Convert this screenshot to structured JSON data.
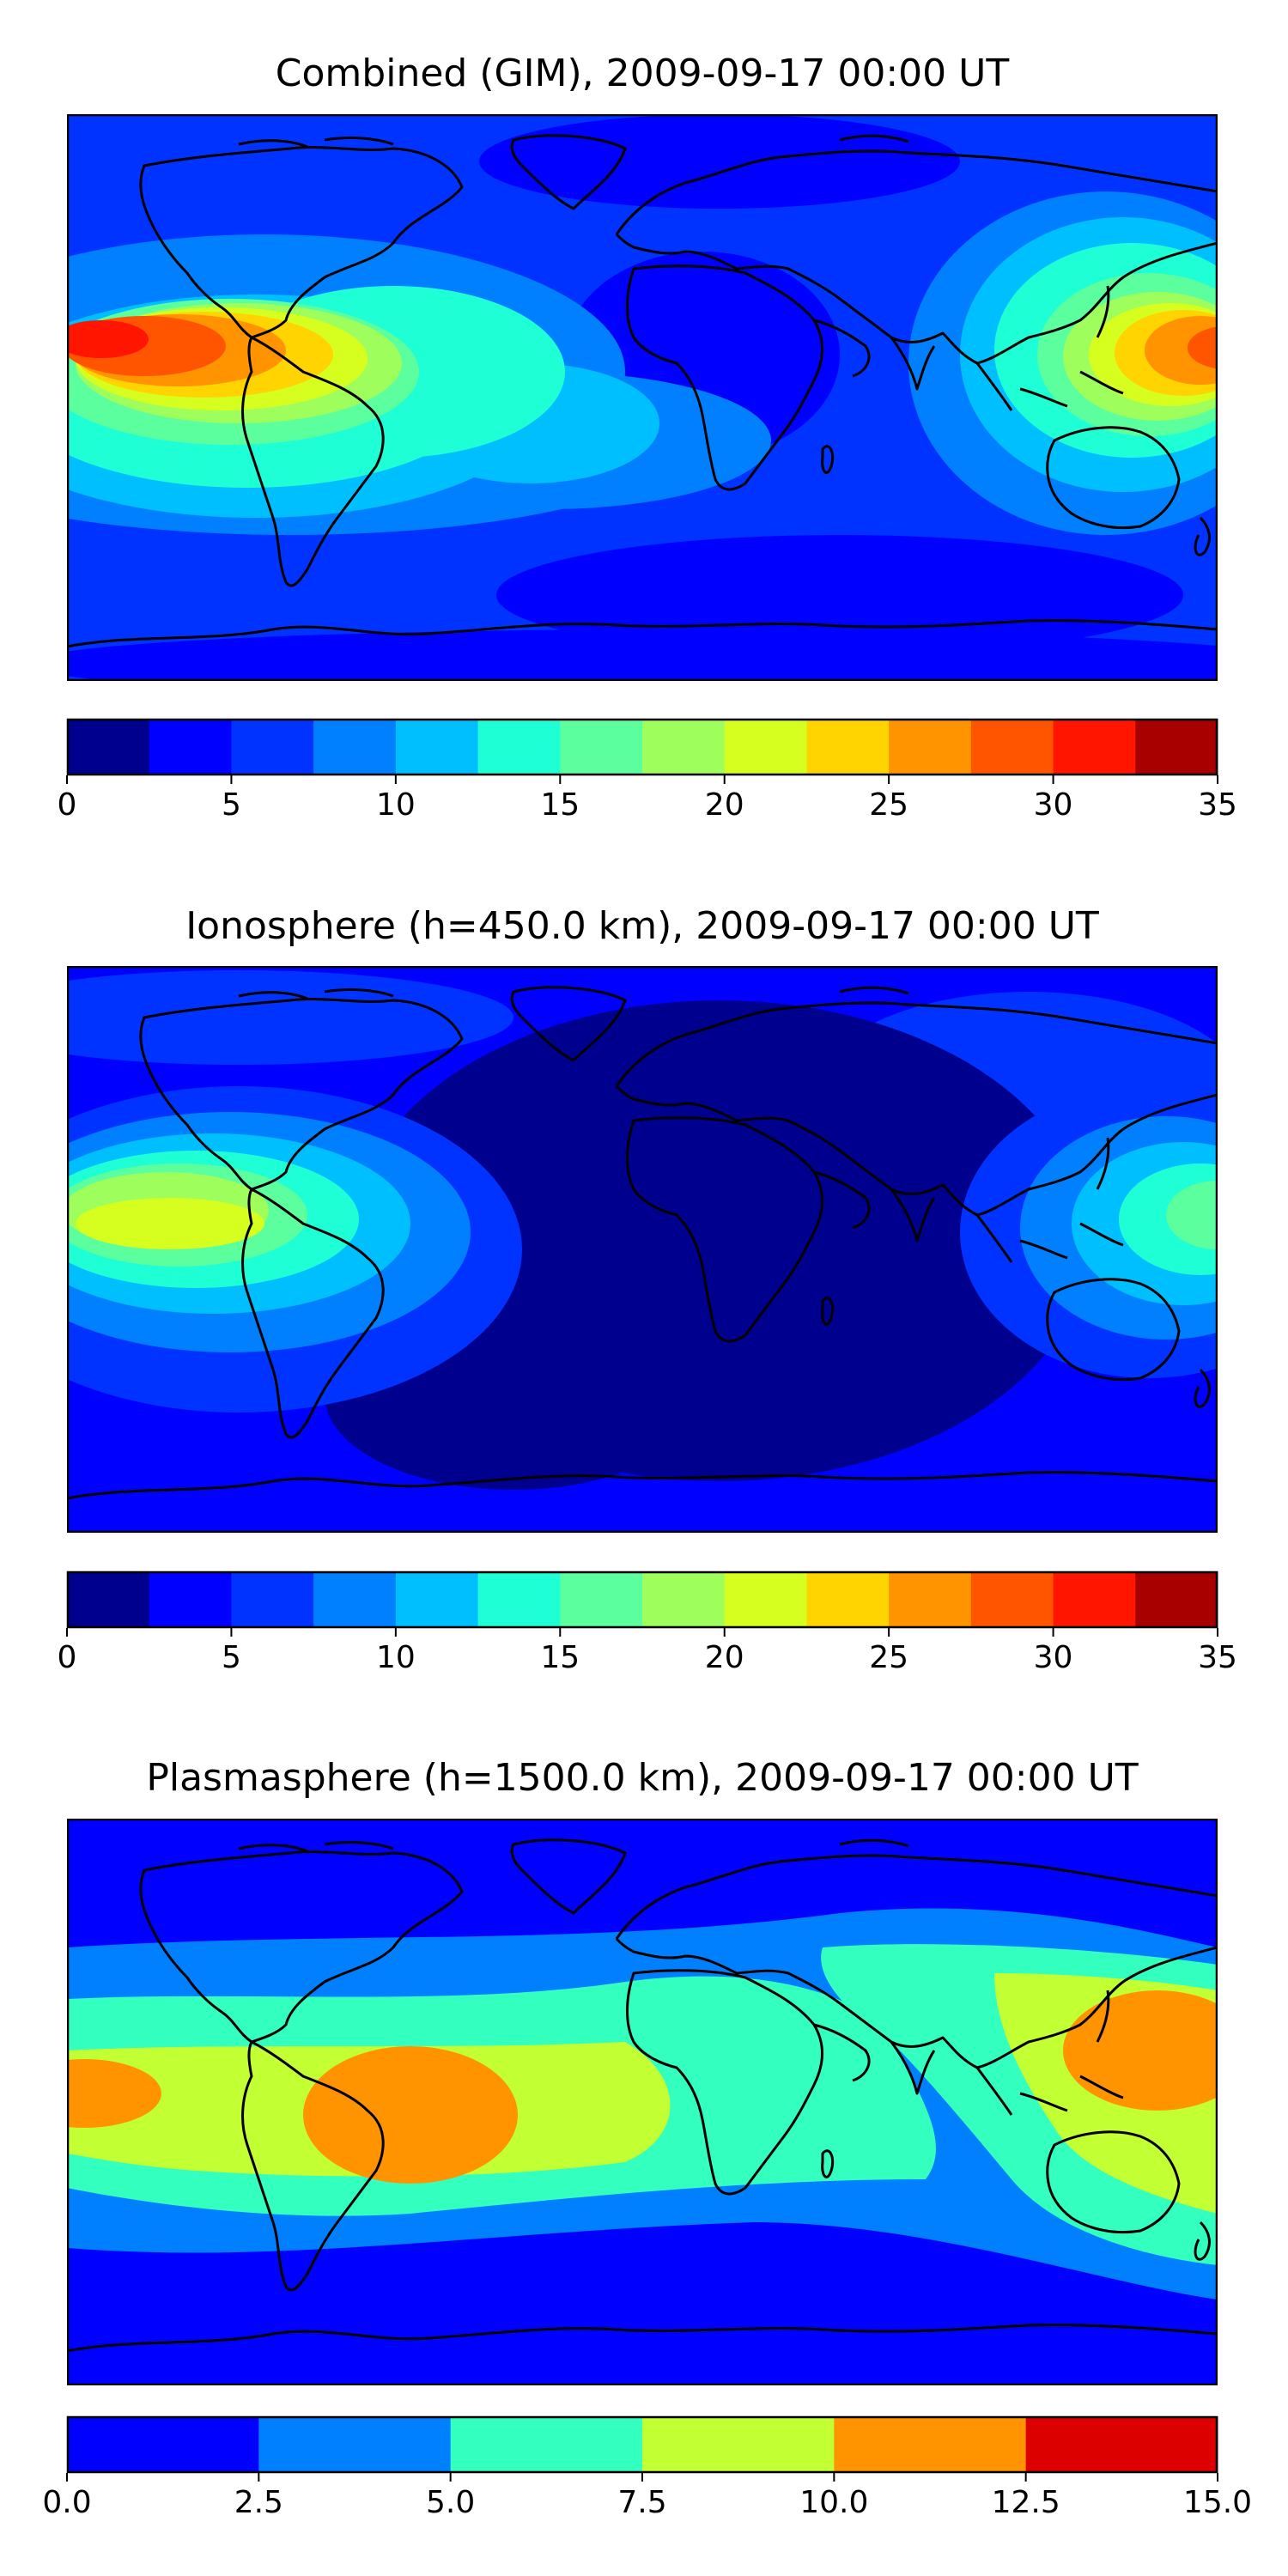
{
  "panels": [
    {
      "title": "Combined (GIM), 2009-09-17 00:00 UT",
      "colorbar": {
        "ticks": [
          "0",
          "5",
          "10",
          "15",
          "20",
          "25",
          "30",
          "35"
        ],
        "levels": [
          0,
          2.5,
          5,
          7.5,
          10,
          12.5,
          15,
          17.5,
          20,
          22.5,
          25,
          27.5,
          30,
          32.5,
          35
        ],
        "colors": [
          "#00008f",
          "#0000ff",
          "#0033ff",
          "#0080ff",
          "#00bfff",
          "#1fffd6",
          "#5cff9e",
          "#9eff5c",
          "#d6ff1f",
          "#ffd400",
          "#ff9400",
          "#ff5500",
          "#ff1500",
          "#a80000"
        ]
      }
    },
    {
      "title": "Ionosphere  (h=450.0 km), 2009-09-17 00:00 UT",
      "colorbar": {
        "ticks": [
          "0",
          "5",
          "10",
          "15",
          "20",
          "25",
          "30",
          "35"
        ],
        "levels": [
          0,
          2.5,
          5,
          7.5,
          10,
          12.5,
          15,
          17.5,
          20,
          22.5,
          25,
          27.5,
          30,
          32.5,
          35
        ],
        "colors": [
          "#00008f",
          "#0000ff",
          "#0033ff",
          "#0080ff",
          "#00bfff",
          "#1fffd6",
          "#5cff9e",
          "#9eff5c",
          "#d6ff1f",
          "#ffd400",
          "#ff9400",
          "#ff5500",
          "#ff1500",
          "#a80000"
        ]
      }
    },
    {
      "title": "Plasmasphere (h=1500.0 km), 2009-09-17 00:00 UT",
      "colorbar": {
        "ticks": [
          "0.0",
          "2.5",
          "5.0",
          "7.5",
          "10.0",
          "12.5",
          "15.0"
        ],
        "levels": [
          0,
          2.5,
          5,
          7.5,
          10,
          12.5,
          15
        ],
        "colors": [
          "#0000ff",
          "#0080ff",
          "#33ffbf",
          "#c2ff33",
          "#ff9400",
          "#dd0000"
        ]
      }
    }
  ]
}
